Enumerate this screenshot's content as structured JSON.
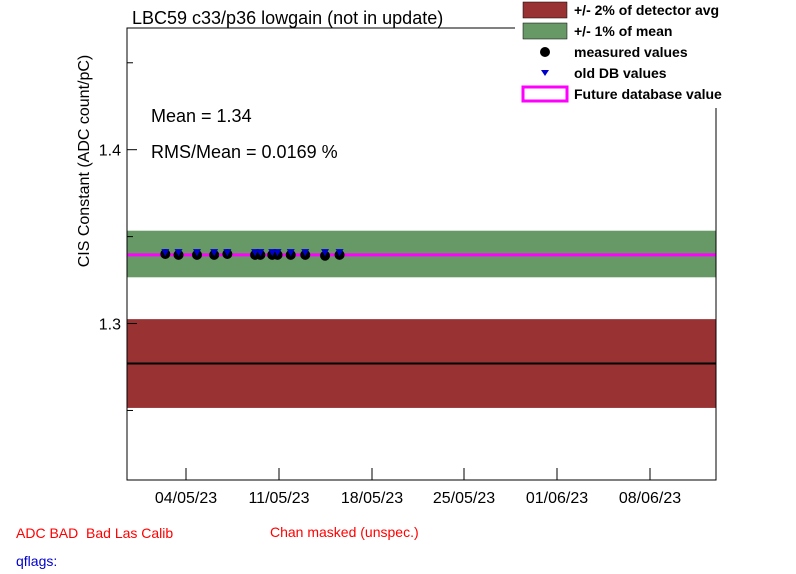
{
  "chart_data": {
    "type": "scatter",
    "title": "LBC59 c33/p36 lowgain (not in update)",
    "ylabel": "CIS Constant (ADC count/pC)",
    "xlabel": "",
    "ylim": [
      1.21,
      1.47
    ],
    "xlim": [
      "2023-04-01",
      "2023-04-13"
    ],
    "x_tick_labels": [
      "04/05/23",
      "11/05/23",
      "18/05/23",
      "25/05/23",
      "01/06/23",
      "08/06/23"
    ],
    "y_tick_labels": [
      "1.3",
      "1.4"
    ],
    "y_ticks": [
      1.3,
      1.4
    ],
    "bands": {
      "detector_avg": 1.277,
      "detector_band_pct": 2,
      "mean_band_pct": 1
    },
    "mean_value": 1.34,
    "future_db_value": 1.3395,
    "series": [
      {
        "name": "measured values",
        "marker": "circle",
        "color": "#000000",
        "x_days": [
          2.6,
          3.6,
          5.0,
          6.3,
          7.3,
          9.4,
          9.8,
          10.7,
          11.1,
          12.1,
          13.2,
          14.7,
          15.8
        ],
        "values": [
          1.34,
          1.3395,
          1.3395,
          1.3395,
          1.34,
          1.3395,
          1.3395,
          1.3395,
          1.3395,
          1.3395,
          1.3395,
          1.339,
          1.3395
        ]
      },
      {
        "name": "old DB values",
        "marker": "triangle-down",
        "color": "#0000cc",
        "x_days": [
          2.6,
          3.6,
          5.0,
          6.3,
          7.3,
          9.4,
          9.8,
          10.7,
          11.1,
          12.1,
          13.2,
          14.7,
          15.8
        ],
        "values": [
          1.3405,
          1.3405,
          1.3405,
          1.3405,
          1.3405,
          1.3405,
          1.3405,
          1.3405,
          1.3405,
          1.3405,
          1.3405,
          1.3405,
          1.3405
        ]
      }
    ],
    "legend": [
      {
        "label": "+/- 2% of detector avg",
        "color": "#993333",
        "kind": "box"
      },
      {
        "label": "+/- 1% of mean",
        "color": "#669966",
        "kind": "box"
      },
      {
        "label": "measured values",
        "color": "#000000",
        "kind": "circle"
      },
      {
        "label": "old DB values",
        "color": "#0000cc",
        "kind": "triangle"
      },
      {
        "label": "Future database value",
        "color": "#ff00ff",
        "kind": "line"
      }
    ],
    "legend_position": "top-right",
    "annotations": {
      "mean_text": "Mean = 1.34",
      "rms_text": "RMS/Mean = 0.0169 %"
    },
    "colors": {
      "detector_band": "#993333",
      "mean_band": "#669966",
      "future_line": "#ff00ff",
      "detector_line": "#000000"
    }
  },
  "footer": {
    "status_left": "ADC BAD  Bad Las Calib",
    "status_right": "Chan masked (unspec.)",
    "qflags": "qflags:",
    "status_color": "#ff0000",
    "qflags_color": "#0000cc"
  }
}
